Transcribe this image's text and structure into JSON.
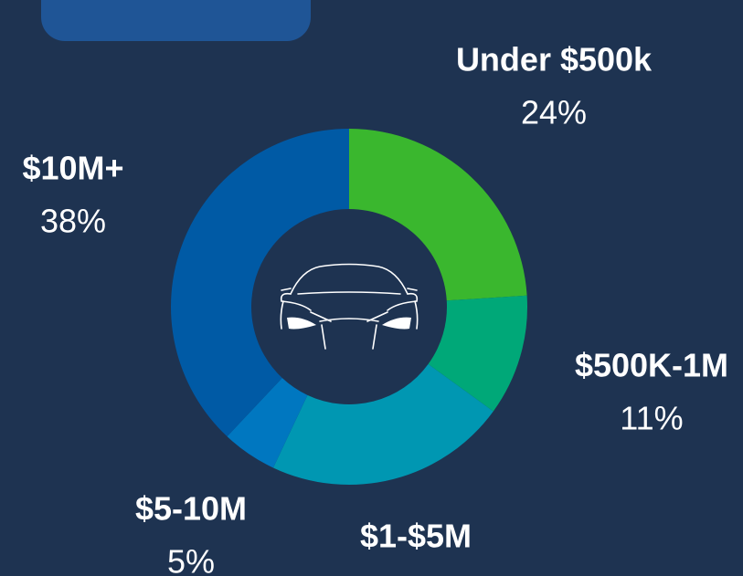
{
  "chart_data": {
    "type": "donut",
    "categories": [
      "Under $500k",
      "$500K-1M",
      "$1-$5M",
      "$5-10M",
      "$10M+"
    ],
    "values": [
      24,
      11,
      22,
      5,
      38
    ],
    "value_labels": [
      "24%",
      "11%",
      null,
      "5%",
      "38%"
    ],
    "colors": [
      "#3ab72e",
      "#00a878",
      "#0097b2",
      "#0077c0",
      "#005aa5"
    ]
  }
}
